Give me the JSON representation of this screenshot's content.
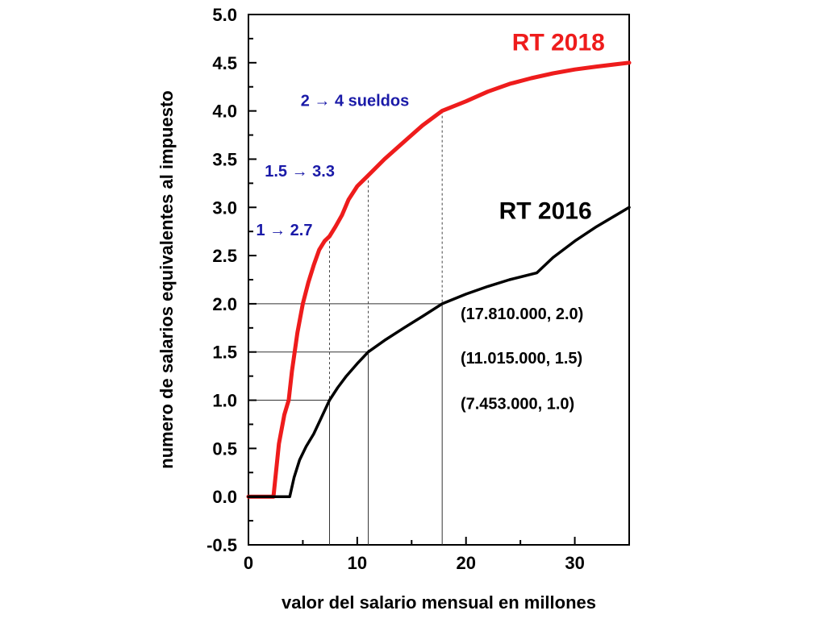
{
  "chart_data": {
    "type": "line",
    "title": "",
    "xlabel": "valor del salario mensual en millones",
    "ylabel": "numero de salarios equivalentes al impuesto",
    "xlim": [
      0,
      35
    ],
    "ylim": [
      -0.5,
      5.0
    ],
    "x_ticks": [
      0,
      10,
      20,
      30
    ],
    "x_tick_labels": [
      "0",
      "10",
      "20",
      "30"
    ],
    "y_ticks": [
      -0.5,
      0.0,
      0.5,
      1.0,
      1.5,
      2.0,
      2.5,
      3.0,
      3.5,
      4.0,
      4.5,
      5.0
    ],
    "y_tick_labels": [
      "-0.5",
      "0.0",
      "0.5",
      "1.0",
      "1.5",
      "2.0",
      "2.5",
      "3.0",
      "3.5",
      "4.0",
      "4.5",
      "5.0"
    ],
    "grid": false,
    "series": [
      {
        "name": "RT 2018",
        "color": "#ee1c1c",
        "x": [
          0,
          2.3,
          2.8,
          3.3,
          3.7,
          4.0,
          4.5,
          5.0,
          5.5,
          6.0,
          6.5,
          7.0,
          7.45,
          8.0,
          8.6,
          9.2,
          10.0,
          11.0,
          12.5,
          14.0,
          16.0,
          17.8,
          20.0,
          22.0,
          24.0,
          26.0,
          28.0,
          30.0,
          32.0,
          35.0
        ],
        "y": [
          0,
          0,
          0.55,
          0.85,
          1.0,
          1.3,
          1.7,
          2.0,
          2.22,
          2.4,
          2.56,
          2.65,
          2.7,
          2.8,
          2.92,
          3.08,
          3.22,
          3.33,
          3.5,
          3.65,
          3.85,
          4.0,
          4.1,
          4.2,
          4.28,
          4.34,
          4.39,
          4.43,
          4.46,
          4.5
        ]
      },
      {
        "name": "RT 2016",
        "color": "#000000",
        "x": [
          0,
          3.8,
          4.2,
          4.7,
          5.3,
          6.0,
          6.7,
          7.45,
          8.2,
          9.0,
          10.0,
          11.015,
          12.5,
          14.3,
          16.0,
          17.81,
          20.0,
          22.0,
          24.0,
          26.5,
          28.0,
          30.0,
          32.0,
          35.0
        ],
        "y": [
          0,
          0,
          0.2,
          0.38,
          0.52,
          0.65,
          0.82,
          1.0,
          1.13,
          1.25,
          1.38,
          1.5,
          1.62,
          1.75,
          1.87,
          2.0,
          2.1,
          2.18,
          2.25,
          2.32,
          2.48,
          2.65,
          2.8,
          3.0
        ]
      }
    ],
    "reference_lines": [
      {
        "x": 7.453,
        "y_low": 1.0,
        "y_high": 2.7
      },
      {
        "x": 11.015,
        "y_low": 1.5,
        "y_high": 3.33
      },
      {
        "x": 17.81,
        "y_low": 2.0,
        "y_high": 4.0
      }
    ],
    "series_labels": [
      {
        "text": "RT 2018",
        "x": 28.5,
        "y": 4.63,
        "color": "#ee1c1c"
      },
      {
        "text": "RT 2016",
        "x": 27.3,
        "y": 2.88,
        "color": "#000000"
      }
    ],
    "annotations_blue": [
      {
        "text": "2 → 4 sueldos",
        "x": 4.8,
        "y": 4.05
      },
      {
        "text": "1.5 → 3.3",
        "x": 1.5,
        "y": 3.32
      },
      {
        "text": "1 → 2.7",
        "x": 0.7,
        "y": 2.71
      }
    ],
    "annotations_black": [
      {
        "text": "(17.810.000, 2.0)",
        "x": 19.5,
        "y": 1.84
      },
      {
        "text": "(11.015.000, 1.5)",
        "x": 19.5,
        "y": 1.38
      },
      {
        "text": "(7.453.000, 1.0)",
        "x": 19.5,
        "y": 0.91
      }
    ]
  }
}
